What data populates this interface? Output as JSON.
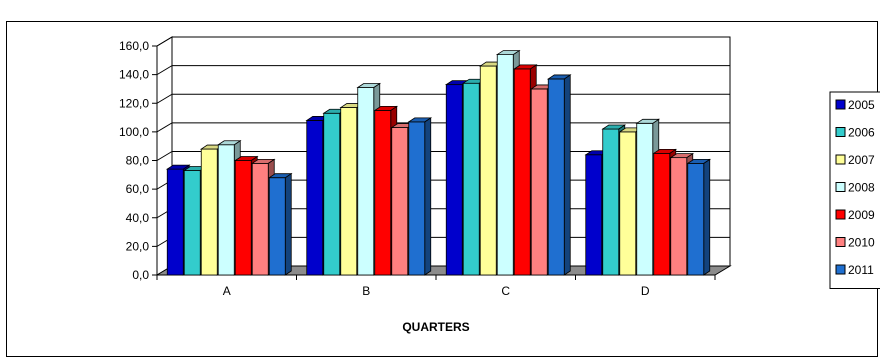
{
  "title": "",
  "chart_data": {
    "type": "bar",
    "categories": [
      "A",
      "B",
      "C",
      "D"
    ],
    "series": [
      {
        "name": "2005",
        "values": [
          74,
          108,
          133,
          84
        ],
        "color": "#0000cc"
      },
      {
        "name": "2006",
        "values": [
          73,
          113,
          134,
          102
        ],
        "color": "#33cccc"
      },
      {
        "name": "2007",
        "values": [
          88,
          117,
          146,
          100
        ],
        "color": "#ffff99"
      },
      {
        "name": "2008",
        "values": [
          91,
          131,
          154,
          106
        ],
        "color": "#ccffff"
      },
      {
        "name": "2009",
        "values": [
          80,
          115,
          144,
          85
        ],
        "color": "#ff0000"
      },
      {
        "name": "2010",
        "values": [
          78,
          103,
          130,
          82
        ],
        "color": "#ff8080"
      },
      {
        "name": "2011",
        "values": [
          68,
          107,
          137,
          78
        ],
        "color": "#1f6fd0"
      }
    ],
    "xlabel": "QUARTERS",
    "ylabel": "",
    "ylim": [
      0,
      160
    ],
    "yticks": [
      "0,0",
      "20,0",
      "40,0",
      "60,0",
      "80,0",
      "100,0",
      "120,0",
      "140,0",
      "160,0"
    ],
    "grid": true,
    "legend": "right",
    "style": "3d-clustered-column"
  }
}
